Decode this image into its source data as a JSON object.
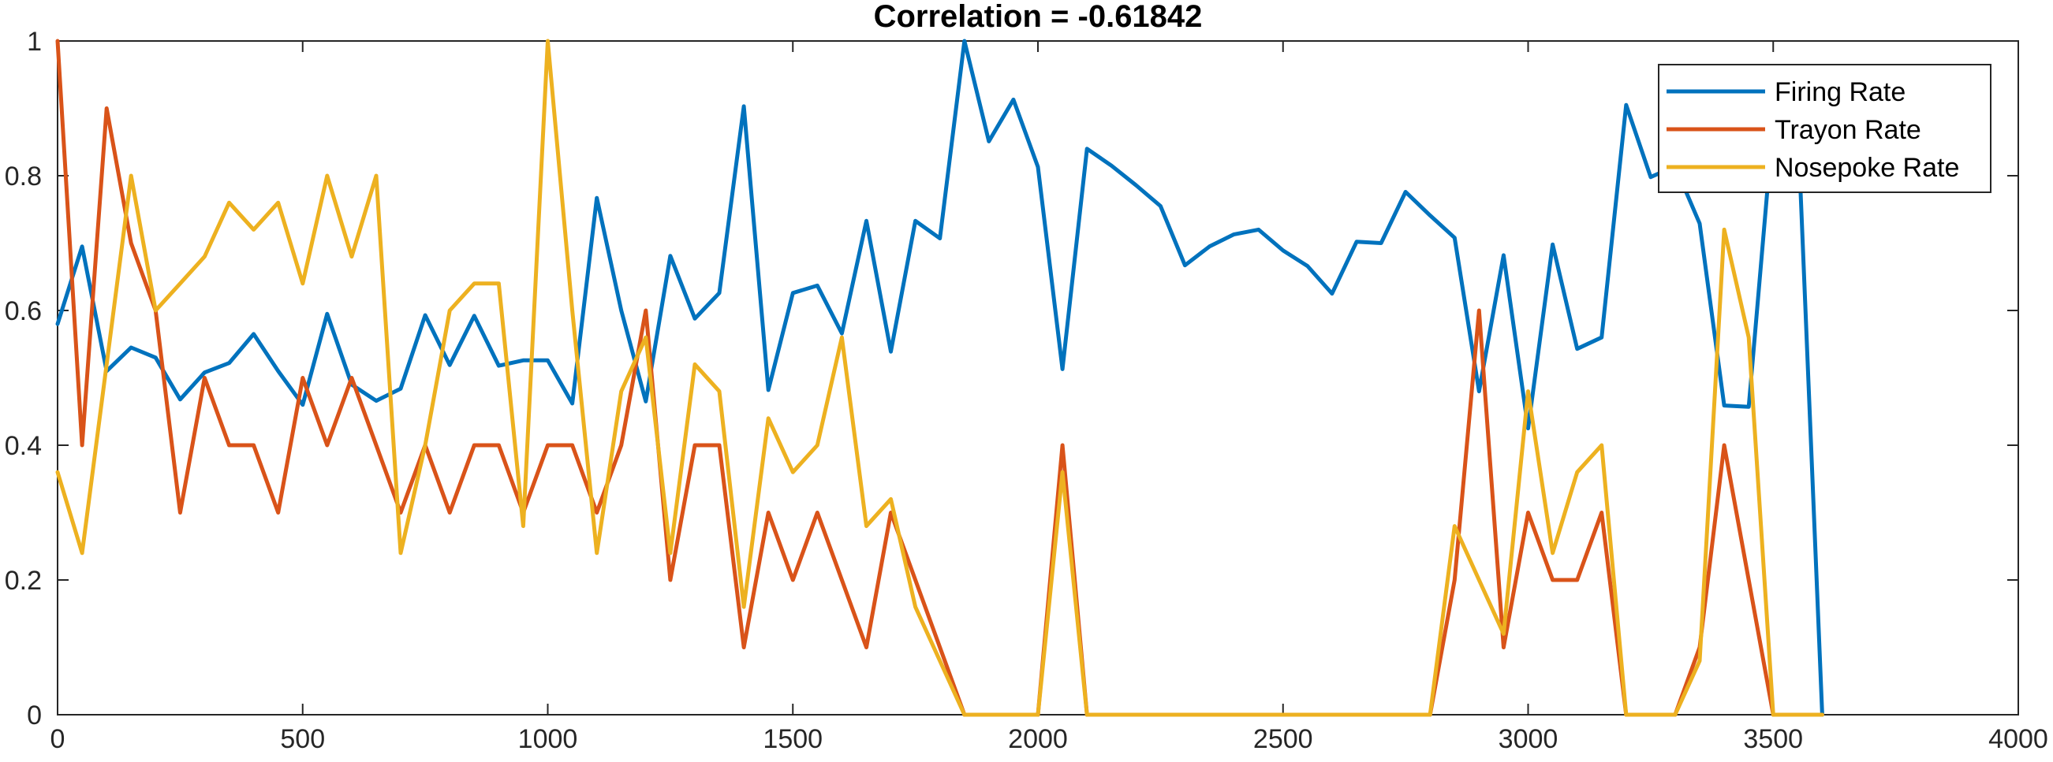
{
  "chart_data": {
    "type": "line",
    "title": "Correlation = -0.61842",
    "xlabel": "",
    "ylabel": "",
    "xlim": [
      0,
      4000
    ],
    "ylim": [
      0,
      1
    ],
    "xticks": [
      0,
      500,
      1000,
      1500,
      2000,
      2500,
      3000,
      3500,
      4000
    ],
    "yticks": [
      0,
      0.2,
      0.4,
      0.6,
      0.8,
      1
    ],
    "ytick_labels": [
      "0",
      "0.2",
      "0.4",
      "0.6",
      "0.8",
      "1"
    ],
    "grid": false,
    "legend_position": "top-right",
    "series": [
      {
        "name": "Firing Rate",
        "color": "#0072BD",
        "x": [
          0,
          50,
          100,
          150,
          200,
          250,
          300,
          350,
          400,
          450,
          500,
          550,
          600,
          650,
          700,
          750,
          800,
          850,
          900,
          950,
          1000,
          1050,
          1100,
          1150,
          1200,
          1250,
          1300,
          1350,
          1400,
          1450,
          1500,
          1550,
          1600,
          1650,
          1700,
          1750,
          1800,
          1850,
          1900,
          1950,
          2000,
          2050,
          2100,
          2150,
          2200,
          2250,
          2300,
          2350,
          2400,
          2450,
          2500,
          2550,
          2600,
          2650,
          2700,
          2750,
          2800,
          2850,
          2900,
          2950,
          3000,
          3050,
          3100,
          3150,
          3200,
          3250,
          3300,
          3350,
          3400,
          3450,
          3500,
          3550,
          3600
        ],
        "y": [
          0.58,
          0.695,
          0.51,
          0.545,
          0.53,
          0.468,
          0.508,
          0.522,
          0.565,
          0.51,
          0.46,
          0.595,
          0.49,
          0.466,
          0.484,
          0.593,
          0.519,
          0.592,
          0.518,
          0.526,
          0.526,
          0.462,
          0.767,
          0.6,
          0.465,
          0.681,
          0.588,
          0.626,
          0.903,
          0.482,
          0.626,
          0.637,
          0.566,
          0.733,
          0.539,
          0.733,
          0.707,
          1.0,
          0.851,
          0.913,
          0.813,
          0.513,
          0.84,
          0.815,
          0.786,
          0.755,
          0.667,
          0.695,
          0.713,
          0.72,
          0.689,
          0.666,
          0.625,
          0.702,
          0.7,
          0.776,
          0.741,
          0.708,
          0.48,
          0.682,
          0.425,
          0.698,
          0.543,
          0.56,
          0.905,
          0.798,
          0.814,
          0.729,
          0.459,
          0.457,
          0.88,
          0.88,
          0.0
        ]
      },
      {
        "name": "Trayon Rate",
        "color": "#D95319",
        "x": [
          0,
          50,
          100,
          150,
          200,
          250,
          300,
          350,
          400,
          450,
          500,
          550,
          600,
          650,
          700,
          750,
          800,
          850,
          900,
          950,
          1000,
          1050,
          1100,
          1150,
          1200,
          1250,
          1300,
          1350,
          1400,
          1450,
          1500,
          1550,
          1600,
          1650,
          1700,
          1750,
          1800,
          1850,
          1900,
          1950,
          2000,
          2050,
          2100,
          2150,
          2200,
          2250,
          2300,
          2350,
          2400,
          2450,
          2500,
          2550,
          2600,
          2650,
          2700,
          2750,
          2800,
          2850,
          2900,
          2950,
          3000,
          3050,
          3100,
          3150,
          3200,
          3250,
          3300,
          3350,
          3400,
          3450,
          3500,
          3550,
          3600
        ],
        "y": [
          1.0,
          0.4,
          0.9,
          0.7,
          0.6,
          0.3,
          0.5,
          0.4,
          0.4,
          0.3,
          0.5,
          0.4,
          0.5,
          0.4,
          0.3,
          0.4,
          0.3,
          0.4,
          0.4,
          0.3,
          0.4,
          0.4,
          0.3,
          0.4,
          0.6,
          0.2,
          0.4,
          0.4,
          0.1,
          0.3,
          0.2,
          0.3,
          0.2,
          0.1,
          0.3,
          0.2,
          0.1,
          0.0,
          0.0,
          0.0,
          0.0,
          0.4,
          0.0,
          0.0,
          0.0,
          0.0,
          0.0,
          0.0,
          0.0,
          0.0,
          0.0,
          0.0,
          0.0,
          0.0,
          0.0,
          0.0,
          0.0,
          0.2,
          0.6,
          0.1,
          0.3,
          0.2,
          0.2,
          0.3,
          0.0,
          0.0,
          0.0,
          0.1,
          0.4,
          0.2,
          0.0,
          0.0,
          0.0
        ]
      },
      {
        "name": "Nosepoke Rate",
        "color": "#EDB120",
        "x": [
          0,
          50,
          100,
          150,
          200,
          250,
          300,
          350,
          400,
          450,
          500,
          550,
          600,
          650,
          700,
          750,
          800,
          850,
          900,
          950,
          1000,
          1050,
          1100,
          1150,
          1200,
          1250,
          1300,
          1350,
          1400,
          1450,
          1500,
          1550,
          1600,
          1650,
          1700,
          1750,
          1800,
          1850,
          1900,
          1950,
          2000,
          2050,
          2100,
          2150,
          2200,
          2250,
          2300,
          2350,
          2400,
          2450,
          2500,
          2550,
          2600,
          2650,
          2700,
          2750,
          2800,
          2850,
          2900,
          2950,
          3000,
          3050,
          3100,
          3150,
          3200,
          3250,
          3300,
          3350,
          3400,
          3450,
          3500,
          3550,
          3600
        ],
        "y": [
          0.36,
          0.24,
          0.52,
          0.8,
          0.6,
          0.64,
          0.68,
          0.76,
          0.72,
          0.76,
          0.64,
          0.8,
          0.68,
          0.8,
          0.24,
          0.4,
          0.6,
          0.64,
          0.64,
          0.28,
          1.0,
          0.6,
          0.24,
          0.48,
          0.56,
          0.24,
          0.52,
          0.48,
          0.16,
          0.44,
          0.36,
          0.4,
          0.56,
          0.28,
          0.32,
          0.16,
          0.08,
          0.0,
          0.0,
          0.0,
          0.0,
          0.36,
          0.0,
          0.0,
          0.0,
          0.0,
          0.0,
          0.0,
          0.0,
          0.0,
          0.0,
          0.0,
          0.0,
          0.0,
          0.0,
          0.0,
          0.0,
          0.28,
          0.2,
          0.12,
          0.48,
          0.24,
          0.36,
          0.4,
          0.0,
          0.0,
          0.0,
          0.08,
          0.72,
          0.56,
          0.0,
          0.0,
          0.0
        ]
      }
    ]
  }
}
